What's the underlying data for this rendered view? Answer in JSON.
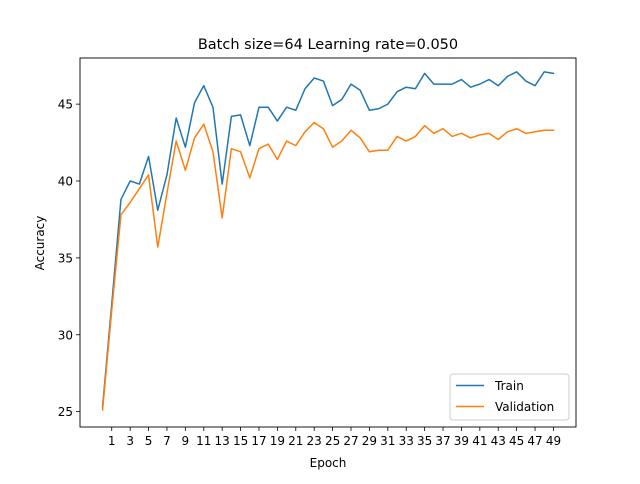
{
  "chart_data": {
    "type": "line",
    "title": "Batch size=64 Learning rate=0.050",
    "xlabel": "Epoch",
    "ylabel": "Accuracy",
    "xlim": [
      -2.45,
      51.45
    ],
    "ylim": [
      24.0,
      48.0
    ],
    "xticks": [
      1,
      3,
      5,
      7,
      9,
      11,
      13,
      15,
      17,
      19,
      21,
      23,
      25,
      27,
      29,
      31,
      33,
      35,
      37,
      39,
      41,
      43,
      45,
      47,
      49
    ],
    "yticks": [
      25,
      30,
      35,
      40,
      45
    ],
    "grid": false,
    "legend_position": "lower right",
    "x": [
      0,
      1,
      2,
      3,
      4,
      5,
      6,
      7,
      8,
      9,
      10,
      11,
      12,
      13,
      14,
      15,
      16,
      17,
      18,
      19,
      20,
      21,
      22,
      23,
      24,
      25,
      26,
      27,
      28,
      29,
      30,
      31,
      32,
      33,
      34,
      35,
      36,
      37,
      38,
      39,
      40,
      41,
      42,
      43,
      44,
      45,
      46,
      47,
      48,
      49
    ],
    "series": [
      {
        "name": "Train",
        "color": "#1f77b4",
        "values": [
          25.3,
          32.0,
          38.8,
          40.0,
          39.8,
          41.6,
          38.1,
          40.4,
          44.1,
          42.2,
          45.1,
          46.2,
          44.8,
          39.8,
          44.2,
          44.3,
          42.3,
          44.8,
          44.8,
          43.9,
          44.8,
          44.6,
          46.0,
          46.7,
          46.5,
          44.9,
          45.3,
          46.3,
          45.9,
          44.6,
          44.7,
          45.0,
          45.8,
          46.1,
          46.0,
          47.0,
          46.3,
          46.3,
          46.3,
          46.6,
          46.1,
          46.3,
          46.6,
          46.2,
          46.8,
          47.1,
          46.5,
          46.2,
          47.1,
          47.0
        ]
      },
      {
        "name": "Validation",
        "color": "#ff7f0e",
        "values": [
          25.1,
          31.6,
          37.8,
          38.6,
          39.5,
          40.4,
          35.7,
          39.2,
          42.6,
          40.7,
          42.8,
          43.7,
          41.9,
          37.6,
          42.1,
          41.9,
          40.2,
          42.1,
          42.4,
          41.4,
          42.6,
          42.3,
          43.2,
          43.8,
          43.4,
          42.2,
          42.6,
          43.3,
          42.8,
          41.9,
          42.0,
          42.0,
          42.9,
          42.6,
          42.9,
          43.6,
          43.1,
          43.4,
          42.9,
          43.1,
          42.8,
          43.0,
          43.1,
          42.7,
          43.2,
          43.4,
          43.1,
          43.2,
          43.3,
          43.3
        ]
      }
    ]
  }
}
